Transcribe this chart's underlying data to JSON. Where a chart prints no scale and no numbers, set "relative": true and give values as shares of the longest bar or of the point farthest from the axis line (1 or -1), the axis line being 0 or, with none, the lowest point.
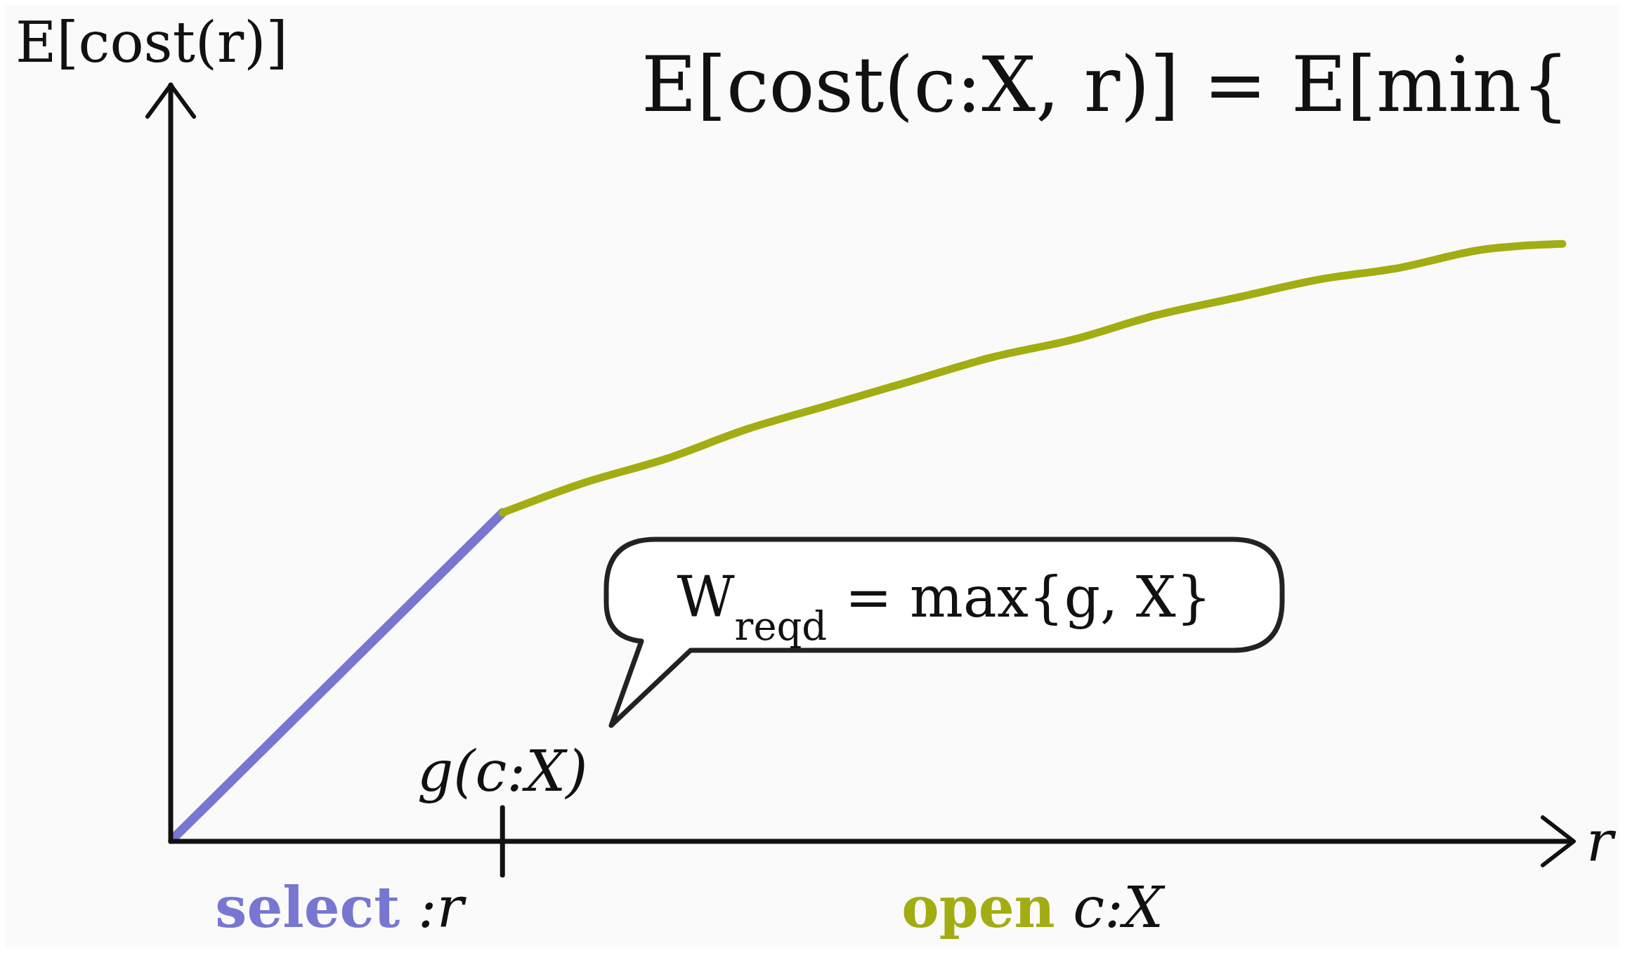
{
  "chart_data": {
    "type": "line",
    "title": "E[cost(c:X, r)] = E[min{",
    "xlabel": "r",
    "ylabel": "E[cost(r)]",
    "categories": [
      null,
      null,
      null,
      null,
      null,
      null,
      null,
      null,
      null,
      null,
      null,
      null,
      null,
      null,
      null,
      null,
      null,
      null
    ],
    "relative": true,
    "marker": "none",
    "line_style": "solid",
    "series": [
      {
        "name": "select :r",
        "color": "#7777d1",
        "values": [
          0.01,
          0.145,
          0.28,
          0.415,
          0.55,
          null,
          null,
          null,
          null,
          null,
          null,
          null,
          null,
          null,
          null,
          null,
          null,
          null
        ]
      },
      {
        "name": "open c:X",
        "color": "#a2ad12",
        "values": [
          null,
          null,
          null,
          null,
          0.55,
          0.6,
          0.64,
          0.69,
          0.73,
          0.77,
          0.81,
          0.84,
          0.88,
          0.91,
          0.94,
          0.96,
          0.99,
          1
        ]
      }
    ],
    "annotations": [
      "g(c:X)",
      "W$_{reqd}$ = max{g, X}"
    ]
  }
}
